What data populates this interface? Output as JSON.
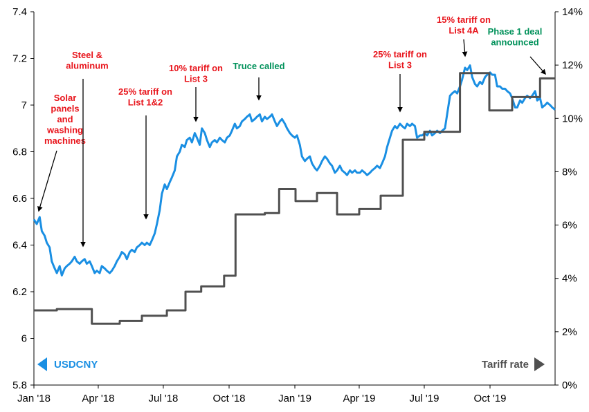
{
  "chart_data": {
    "type": "line",
    "grid": false,
    "x_axis": {
      "range": [
        "2018-01-01",
        "2019-12-31"
      ],
      "tick_labels": [
        "Jan '18",
        "Apr '18",
        "Jul '18",
        "Oct '18",
        "Jan '19",
        "Apr '19",
        "Jul '19",
        "Oct '19"
      ],
      "tick_dates": [
        "2018-01-01",
        "2018-04-01",
        "2018-07-01",
        "2018-10-01",
        "2019-01-01",
        "2019-04-01",
        "2019-07-01",
        "2019-10-01"
      ]
    },
    "y_left": {
      "range": [
        5.8,
        7.4
      ],
      "tick_labels": [
        "5.8",
        "6",
        "6.2",
        "6.4",
        "6.6",
        "6.8",
        "7",
        "7.2",
        "7.4"
      ],
      "tick_values": [
        5.8,
        6.0,
        6.2,
        6.4,
        6.6,
        6.8,
        7.0,
        7.2,
        7.4
      ]
    },
    "y_right": {
      "range": [
        0,
        14
      ],
      "tick_labels": [
        "0%",
        "2%",
        "4%",
        "6%",
        "8%",
        "10%",
        "12%",
        "14%"
      ],
      "tick_values": [
        0,
        2,
        4,
        6,
        8,
        10,
        12,
        14
      ]
    },
    "legend": {
      "left": {
        "label": "USDCNY",
        "color": "#1a8fe3"
      },
      "right": {
        "label": "Tariff rate",
        "color": "#505050"
      }
    },
    "series": [
      {
        "name": "USDCNY",
        "axis": "left",
        "color": "#1a8fe3",
        "points": [
          [
            "2018-01-01",
            6.51
          ],
          [
            "2018-01-05",
            6.49
          ],
          [
            "2018-01-09",
            6.52
          ],
          [
            "2018-01-12",
            6.46
          ],
          [
            "2018-01-16",
            6.44
          ],
          [
            "2018-01-19",
            6.41
          ],
          [
            "2018-01-23",
            6.39
          ],
          [
            "2018-01-26",
            6.33
          ],
          [
            "2018-01-30",
            6.3
          ],
          [
            "2018-02-02",
            6.28
          ],
          [
            "2018-02-06",
            6.31
          ],
          [
            "2018-02-09",
            6.27
          ],
          [
            "2018-02-13",
            6.3
          ],
          [
            "2018-02-16",
            6.31
          ],
          [
            "2018-02-20",
            6.32
          ],
          [
            "2018-02-23",
            6.33
          ],
          [
            "2018-02-27",
            6.35
          ],
          [
            "2018-03-02",
            6.33
          ],
          [
            "2018-03-06",
            6.32
          ],
          [
            "2018-03-09",
            6.33
          ],
          [
            "2018-03-13",
            6.34
          ],
          [
            "2018-03-16",
            6.32
          ],
          [
            "2018-03-20",
            6.33
          ],
          [
            "2018-03-23",
            6.31
          ],
          [
            "2018-03-27",
            6.28
          ],
          [
            "2018-03-30",
            6.29
          ],
          [
            "2018-04-03",
            6.28
          ],
          [
            "2018-04-06",
            6.31
          ],
          [
            "2018-04-10",
            6.3
          ],
          [
            "2018-04-13",
            6.29
          ],
          [
            "2018-04-17",
            6.28
          ],
          [
            "2018-04-20",
            6.29
          ],
          [
            "2018-04-24",
            6.31
          ],
          [
            "2018-04-27",
            6.33
          ],
          [
            "2018-05-01",
            6.35
          ],
          [
            "2018-05-04",
            6.37
          ],
          [
            "2018-05-08",
            6.36
          ],
          [
            "2018-05-11",
            6.34
          ],
          [
            "2018-05-15",
            6.37
          ],
          [
            "2018-05-18",
            6.38
          ],
          [
            "2018-05-22",
            6.37
          ],
          [
            "2018-05-25",
            6.39
          ],
          [
            "2018-05-29",
            6.4
          ],
          [
            "2018-06-01",
            6.41
          ],
          [
            "2018-06-05",
            6.4
          ],
          [
            "2018-06-08",
            6.41
          ],
          [
            "2018-06-12",
            6.4
          ],
          [
            "2018-06-15",
            6.42
          ],
          [
            "2018-06-19",
            6.45
          ],
          [
            "2018-06-22",
            6.49
          ],
          [
            "2018-06-26",
            6.55
          ],
          [
            "2018-06-29",
            6.62
          ],
          [
            "2018-07-03",
            6.66
          ],
          [
            "2018-07-06",
            6.64
          ],
          [
            "2018-07-10",
            6.67
          ],
          [
            "2018-07-13",
            6.69
          ],
          [
            "2018-07-17",
            6.72
          ],
          [
            "2018-07-20",
            6.78
          ],
          [
            "2018-07-24",
            6.8
          ],
          [
            "2018-07-27",
            6.83
          ],
          [
            "2018-07-31",
            6.82
          ],
          [
            "2018-08-03",
            6.85
          ],
          [
            "2018-08-07",
            6.86
          ],
          [
            "2018-08-10",
            6.84
          ],
          [
            "2018-08-14",
            6.88
          ],
          [
            "2018-08-17",
            6.86
          ],
          [
            "2018-08-21",
            6.83
          ],
          [
            "2018-08-24",
            6.9
          ],
          [
            "2018-08-28",
            6.88
          ],
          [
            "2018-08-31",
            6.85
          ],
          [
            "2018-09-04",
            6.82
          ],
          [
            "2018-09-07",
            6.84
          ],
          [
            "2018-09-11",
            6.85
          ],
          [
            "2018-09-14",
            6.84
          ],
          [
            "2018-09-18",
            6.86
          ],
          [
            "2018-09-21",
            6.85
          ],
          [
            "2018-09-25",
            6.84
          ],
          [
            "2018-09-28",
            6.86
          ],
          [
            "2018-10-02",
            6.87
          ],
          [
            "2018-10-05",
            6.89
          ],
          [
            "2018-10-09",
            6.92
          ],
          [
            "2018-10-12",
            6.9
          ],
          [
            "2018-10-16",
            6.91
          ],
          [
            "2018-10-19",
            6.93
          ],
          [
            "2018-10-23",
            6.94
          ],
          [
            "2018-10-26",
            6.95
          ],
          [
            "2018-10-30",
            6.96
          ],
          [
            "2018-11-02",
            6.93
          ],
          [
            "2018-11-06",
            6.94
          ],
          [
            "2018-11-09",
            6.95
          ],
          [
            "2018-11-13",
            6.96
          ],
          [
            "2018-11-16",
            6.93
          ],
          [
            "2018-11-20",
            6.95
          ],
          [
            "2018-11-23",
            6.94
          ],
          [
            "2018-11-27",
            6.95
          ],
          [
            "2018-11-30",
            6.96
          ],
          [
            "2018-12-04",
            6.93
          ],
          [
            "2018-12-07",
            6.91
          ],
          [
            "2018-12-11",
            6.93
          ],
          [
            "2018-12-14",
            6.94
          ],
          [
            "2018-12-18",
            6.92
          ],
          [
            "2018-12-21",
            6.9
          ],
          [
            "2018-12-25",
            6.88
          ],
          [
            "2018-12-28",
            6.87
          ],
          [
            "2019-01-01",
            6.86
          ],
          [
            "2019-01-04",
            6.87
          ],
          [
            "2019-01-08",
            6.83
          ],
          [
            "2019-01-11",
            6.78
          ],
          [
            "2019-01-15",
            6.76
          ],
          [
            "2019-01-18",
            6.77
          ],
          [
            "2019-01-22",
            6.78
          ],
          [
            "2019-01-25",
            6.75
          ],
          [
            "2019-01-29",
            6.73
          ],
          [
            "2019-02-01",
            6.72
          ],
          [
            "2019-02-05",
            6.74
          ],
          [
            "2019-02-08",
            6.76
          ],
          [
            "2019-02-12",
            6.78
          ],
          [
            "2019-02-15",
            6.77
          ],
          [
            "2019-02-19",
            6.75
          ],
          [
            "2019-02-22",
            6.74
          ],
          [
            "2019-02-26",
            6.71
          ],
          [
            "2019-03-01",
            6.72
          ],
          [
            "2019-03-05",
            6.74
          ],
          [
            "2019-03-08",
            6.72
          ],
          [
            "2019-03-12",
            6.71
          ],
          [
            "2019-03-15",
            6.7
          ],
          [
            "2019-03-19",
            6.72
          ],
          [
            "2019-03-22",
            6.71
          ],
          [
            "2019-03-26",
            6.72
          ],
          [
            "2019-03-29",
            6.71
          ],
          [
            "2019-04-02",
            6.71
          ],
          [
            "2019-04-05",
            6.72
          ],
          [
            "2019-04-09",
            6.71
          ],
          [
            "2019-04-12",
            6.7
          ],
          [
            "2019-04-16",
            6.71
          ],
          [
            "2019-04-19",
            6.72
          ],
          [
            "2019-04-23",
            6.73
          ],
          [
            "2019-04-26",
            6.74
          ],
          [
            "2019-04-30",
            6.73
          ],
          [
            "2019-05-03",
            6.75
          ],
          [
            "2019-05-07",
            6.78
          ],
          [
            "2019-05-10",
            6.82
          ],
          [
            "2019-05-14",
            6.86
          ],
          [
            "2019-05-17",
            6.89
          ],
          [
            "2019-05-21",
            6.91
          ],
          [
            "2019-05-24",
            6.9
          ],
          [
            "2019-05-28",
            6.92
          ],
          [
            "2019-05-31",
            6.91
          ],
          [
            "2019-06-04",
            6.9
          ],
          [
            "2019-06-07",
            6.92
          ],
          [
            "2019-06-11",
            6.91
          ],
          [
            "2019-06-14",
            6.92
          ],
          [
            "2019-06-18",
            6.91
          ],
          [
            "2019-06-21",
            6.86
          ],
          [
            "2019-06-25",
            6.87
          ],
          [
            "2019-06-28",
            6.87
          ],
          [
            "2019-07-02",
            6.88
          ],
          [
            "2019-07-05",
            6.87
          ],
          [
            "2019-07-09",
            6.89
          ],
          [
            "2019-07-12",
            6.87
          ],
          [
            "2019-07-16",
            6.88
          ],
          [
            "2019-07-19",
            6.89
          ],
          [
            "2019-07-23",
            6.88
          ],
          [
            "2019-07-26",
            6.89
          ],
          [
            "2019-07-30",
            6.9
          ],
          [
            "2019-08-02",
            6.96
          ],
          [
            "2019-08-06",
            7.04
          ],
          [
            "2019-08-09",
            7.05
          ],
          [
            "2019-08-13",
            7.06
          ],
          [
            "2019-08-16",
            7.05
          ],
          [
            "2019-08-20",
            7.08
          ],
          [
            "2019-08-23",
            7.11
          ],
          [
            "2019-08-27",
            7.16
          ],
          [
            "2019-08-30",
            7.15
          ],
          [
            "2019-09-03",
            7.17
          ],
          [
            "2019-09-06",
            7.12
          ],
          [
            "2019-09-10",
            7.09
          ],
          [
            "2019-09-13",
            7.08
          ],
          [
            "2019-09-17",
            7.1
          ],
          [
            "2019-09-20",
            7.09
          ],
          [
            "2019-09-24",
            7.12
          ],
          [
            "2019-09-27",
            7.13
          ],
          [
            "2019-10-01",
            7.14
          ],
          [
            "2019-10-04",
            7.13
          ],
          [
            "2019-10-08",
            7.13
          ],
          [
            "2019-10-11",
            7.08
          ],
          [
            "2019-10-15",
            7.08
          ],
          [
            "2019-10-18",
            7.07
          ],
          [
            "2019-10-22",
            7.07
          ],
          [
            "2019-10-25",
            7.06
          ],
          [
            "2019-10-29",
            7.05
          ],
          [
            "2019-11-01",
            7.03
          ],
          [
            "2019-11-05",
            6.99
          ],
          [
            "2019-11-08",
            6.99
          ],
          [
            "2019-11-12",
            7.02
          ],
          [
            "2019-11-15",
            7.01
          ],
          [
            "2019-11-19",
            7.03
          ],
          [
            "2019-11-22",
            7.04
          ],
          [
            "2019-11-26",
            7.03
          ],
          [
            "2019-11-29",
            7.04
          ],
          [
            "2019-12-03",
            7.06
          ],
          [
            "2019-12-06",
            7.02
          ],
          [
            "2019-12-10",
            7.03
          ],
          [
            "2019-12-13",
            6.99
          ],
          [
            "2019-12-17",
            7.0
          ],
          [
            "2019-12-20",
            7.01
          ],
          [
            "2019-12-24",
            7.0
          ],
          [
            "2019-12-27",
            6.99
          ],
          [
            "2019-12-31",
            6.98
          ]
        ]
      },
      {
        "name": "Tariff rate",
        "axis": "right",
        "color": "#505050",
        "step": true,
        "points": [
          [
            "2018-01-01",
            2.8
          ],
          [
            "2018-02-02",
            2.85
          ],
          [
            "2018-03-23",
            2.3
          ],
          [
            "2018-05-01",
            2.4
          ],
          [
            "2018-06-01",
            2.6
          ],
          [
            "2018-07-06",
            2.8
          ],
          [
            "2018-08-01",
            3.5
          ],
          [
            "2018-08-23",
            3.7
          ],
          [
            "2018-09-24",
            4.1
          ],
          [
            "2018-10-10",
            6.4
          ],
          [
            "2018-11-20",
            6.45
          ],
          [
            "2018-12-10",
            7.35
          ],
          [
            "2019-01-02",
            6.9
          ],
          [
            "2019-02-01",
            7.2
          ],
          [
            "2019-03-01",
            6.4
          ],
          [
            "2019-04-01",
            6.6
          ],
          [
            "2019-05-01",
            7.1
          ],
          [
            "2019-06-01",
            9.2
          ],
          [
            "2019-07-01",
            9.5
          ],
          [
            "2019-08-20",
            11.7
          ],
          [
            "2019-09-30",
            10.3
          ],
          [
            "2019-11-01",
            10.8
          ],
          [
            "2019-12-10",
            11.5
          ],
          [
            "2019-12-31",
            11.5
          ]
        ]
      }
    ],
    "annotations": [
      {
        "lines": [
          "Solar",
          "panels",
          "and",
          "washing",
          "machines"
        ],
        "color": "#e8141b",
        "date": "2018-01-22"
      },
      {
        "lines": [
          "Steel &",
          "aluminum"
        ],
        "color": "#e8141b",
        "date": "2018-03-08"
      },
      {
        "lines": [
          "25% tariff on",
          "List 1&2"
        ],
        "color": "#e8141b",
        "date": "2018-06-15"
      },
      {
        "lines": [
          "10% tariff on",
          "List 3"
        ],
        "color": "#e8141b",
        "date": "2018-08-20"
      },
      {
        "lines": [
          "Truce called"
        ],
        "color": "#00915a",
        "date": "2018-11-22"
      },
      {
        "lines": [
          "25% tariff on",
          "List 3"
        ],
        "color": "#e8141b",
        "date": "2019-05-22"
      },
      {
        "lines": [
          "15% tariff on",
          "List 4A"
        ],
        "color": "#e8141b",
        "date": "2019-08-25"
      },
      {
        "lines": [
          "Phase 1 deal",
          "announced"
        ],
        "color": "#00915a",
        "date": "2019-11-20"
      }
    ]
  }
}
